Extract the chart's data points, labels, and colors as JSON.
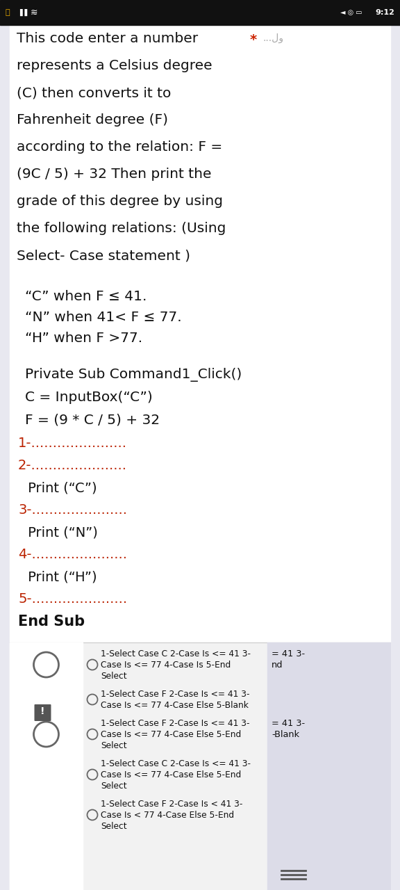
{
  "bg_color": "#e8e8f0",
  "white_bg": "#ffffff",
  "options_bg": "#f8f8f8",
  "left_panel_bg": "#dcdce8",
  "right_panel_bg": "#dcdce8",
  "status_bg": "#111111",
  "text_color": "#111111",
  "red_color": "#bb2200",
  "gray_circle": "#666666",
  "title_lines": [
    "This code enter a number",
    "represents a Celsius degree",
    "(C) then converts it to",
    "Fahrenheit degree (F)",
    "according to the relation: F =",
    "(9C / 5) + 32 Then print the",
    "grade of this degree by using",
    "the following relations: (Using",
    "Select- Case statement )"
  ],
  "conditions": [
    "“C” when F ≤ 41.",
    "“N” when 41< F ≤ 77.",
    "“H” when F >77."
  ],
  "code_lines": [
    "Private Sub Command1_Click()",
    "C = InputBox(“C”)",
    "F = (9 * C / 5) + 32"
  ],
  "fill_lines": [
    {
      "type": "red",
      "text": "1-......................"
    },
    {
      "type": "red",
      "text": "2-......................"
    },
    {
      "type": "black",
      "text": " Print (“C”)"
    },
    {
      "type": "red",
      "text": "3-......................"
    },
    {
      "type": "black",
      "text": " Print (“N”)"
    },
    {
      "type": "red",
      "text": "4-......................"
    },
    {
      "type": "black",
      "text": " Print (“H”)"
    },
    {
      "type": "red",
      "text": "5-......................"
    },
    {
      "type": "bold",
      "text": "End Sub"
    }
  ],
  "options": [
    {
      "selected": false,
      "lines": [
        "1-Select Case C 2-Case Is <= 41 3-",
        "Case Is <= 77 4-Case Is 5-End",
        "Select"
      ],
      "right_lines": [
        "= 41 3-",
        "nd"
      ]
    },
    {
      "selected": false,
      "lines": [
        "1-Select Case F 2-Case Is <= 41 3-",
        "Case Is <= 77 4-Case Else 5-Blank"
      ],
      "right_lines": []
    },
    {
      "selected": false,
      "lines": [
        "1-Select Case F 2-Case Is <= 41 3-",
        "Case Is <= 77 4-Case Else 5-End",
        "Select"
      ],
      "right_lines": [
        "= 41 3-",
        "-Blank"
      ]
    },
    {
      "selected": false,
      "lines": [
        "1-Select Case C 2-Case Is <= 41 3-",
        "Case Is <= 77 4-Case Else 5-End",
        "Select"
      ],
      "right_lines": []
    },
    {
      "selected": false,
      "lines": [
        "1-Select Case F 2-Case Is < 41 3-",
        "Case Is < 77 4-Case Else 5-End",
        "Select"
      ],
      "right_lines": []
    }
  ],
  "status_time": "9:12",
  "star_color": "#cc2200",
  "equals_lines_color": "#555555"
}
